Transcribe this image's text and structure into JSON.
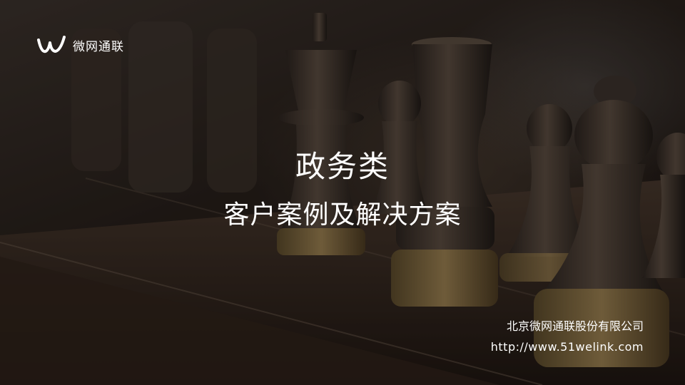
{
  "logo": {
    "text": "微网通联",
    "icon": "w-logo-icon"
  },
  "title": {
    "main": "政务类",
    "sub": "客户案例及解决方案"
  },
  "footer": {
    "company": "北京微网通联股份有限公司",
    "website": "http://www.51welink.com"
  },
  "colors": {
    "text": "#ffffff",
    "background": "#241d18"
  },
  "background_image": "chess-pieces-photo"
}
